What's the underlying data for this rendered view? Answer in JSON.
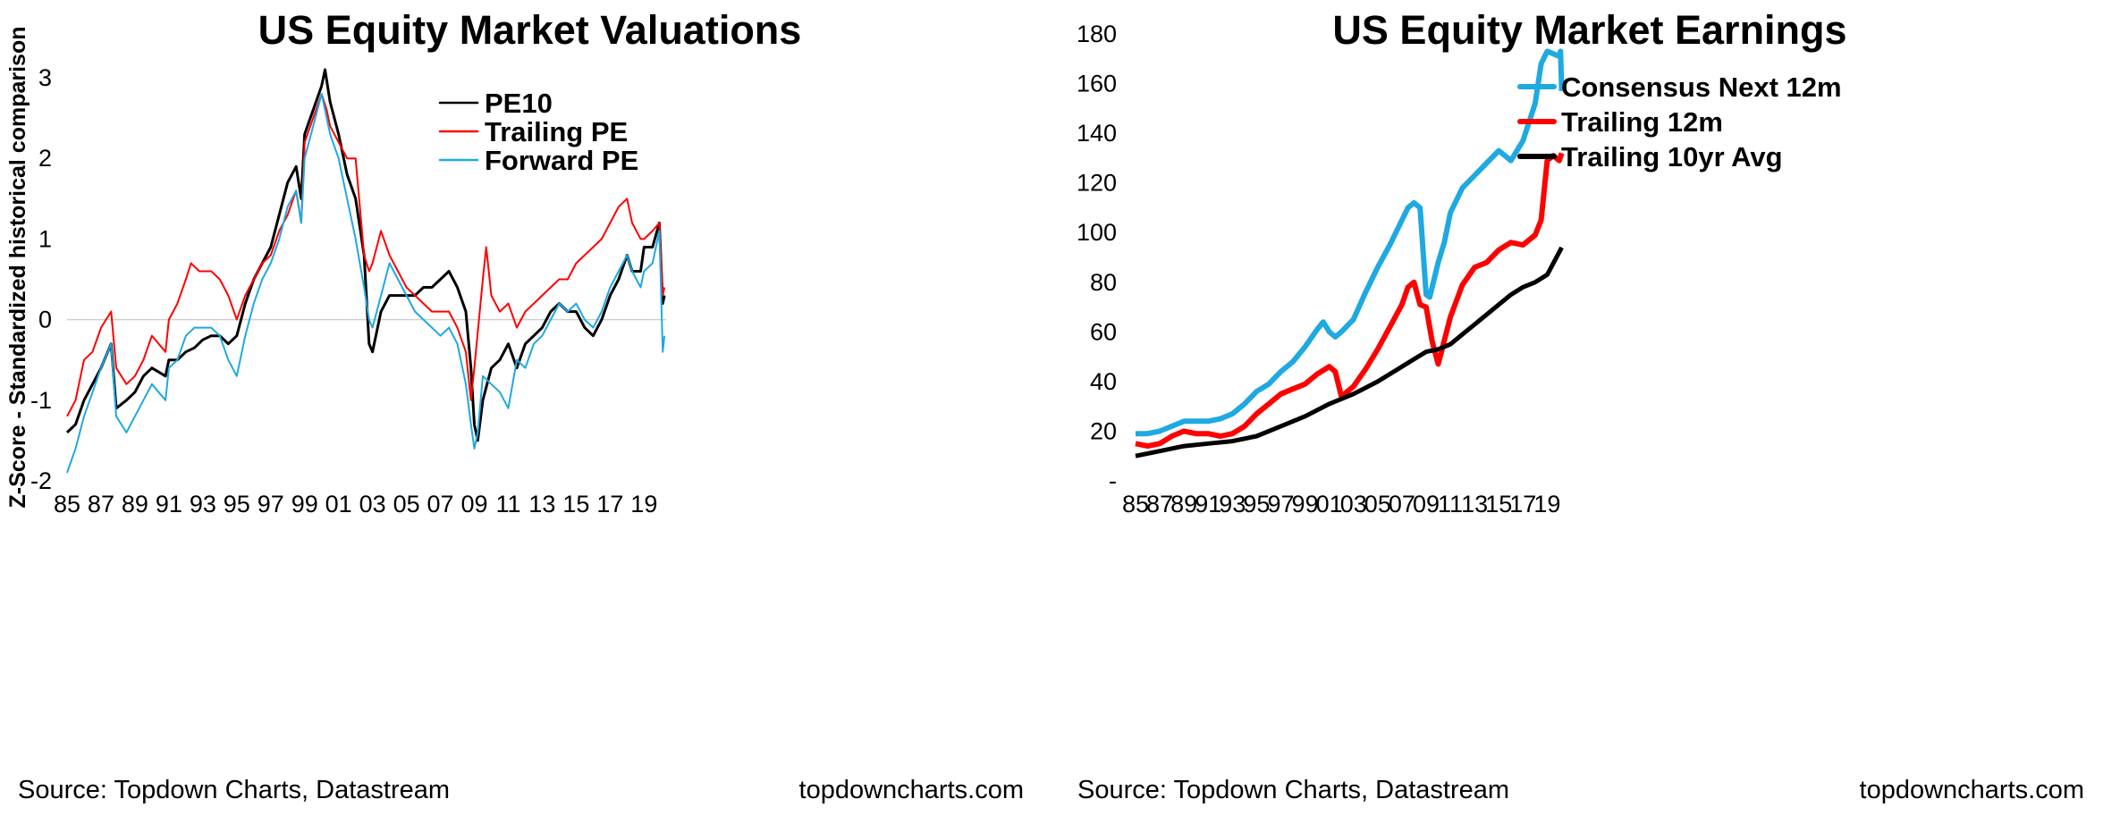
{
  "chart_data": [
    {
      "id": "valuations",
      "type": "line",
      "title": "US Equity Market Valuations",
      "xlabel": "",
      "ylabel": "Z-Score - Standardized historical comparison",
      "xlim": [
        1985,
        2020.3
      ],
      "ylim": [
        -2,
        3.3
      ],
      "yticks": [
        -2,
        -1,
        0,
        1,
        2,
        3
      ],
      "yticklabels": [
        "-2",
        "-1",
        "0",
        "1",
        "2",
        "3"
      ],
      "xticks": [
        1985,
        1987,
        1989,
        1991,
        1993,
        1995,
        1997,
        1999,
        2001,
        2003,
        2005,
        2007,
        2009,
        2011,
        2013,
        2015,
        2017,
        2019
      ],
      "xticklabels": [
        "85",
        "87",
        "89",
        "91",
        "93",
        "95",
        "97",
        "99",
        "01",
        "03",
        "05",
        "07",
        "09",
        "11",
        "13",
        "15",
        "17",
        "19"
      ],
      "zero_line": true,
      "legend_position": "top-right",
      "series": [
        {
          "name": "PE10",
          "color": "#000000",
          "x": [
            1985.0,
            1985.5,
            1986.0,
            1986.5,
            1987.0,
            1987.6,
            1987.9,
            1988.5,
            1989.0,
            1989.5,
            1990.0,
            1990.8,
            1991.0,
            1991.5,
            1992.0,
            1992.5,
            1993.0,
            1993.5,
            1994.0,
            1994.5,
            1995.0,
            1995.5,
            1996.0,
            1996.5,
            1997.0,
            1997.5,
            1998.0,
            1998.5,
            1998.8,
            1999.0,
            1999.5,
            2000.0,
            2000.2,
            2000.5,
            2001.0,
            2001.5,
            2002.0,
            2002.5,
            2002.8,
            2003.0,
            2003.5,
            2004.0,
            2004.5,
            2005.0,
            2005.5,
            2006.0,
            2006.5,
            2007.0,
            2007.5,
            2008.0,
            2008.5,
            2008.8,
            2009.0,
            2009.2,
            2009.5,
            2010.0,
            2010.5,
            2011.0,
            2011.5,
            2012.0,
            2012.5,
            2013.0,
            2013.5,
            2014.0,
            2014.5,
            2015.0,
            2015.5,
            2016.0,
            2016.5,
            2017.0,
            2017.5,
            2018.0,
            2018.3,
            2018.8,
            2019.0,
            2019.5,
            2019.9,
            2020.1,
            2020.2
          ],
          "y": [
            -1.4,
            -1.3,
            -1.0,
            -0.8,
            -0.6,
            -0.3,
            -1.1,
            -1.0,
            -0.9,
            -0.7,
            -0.6,
            -0.7,
            -0.5,
            -0.5,
            -0.4,
            -0.35,
            -0.25,
            -0.2,
            -0.2,
            -0.3,
            -0.2,
            0.2,
            0.5,
            0.7,
            0.9,
            1.3,
            1.7,
            1.9,
            1.5,
            2.3,
            2.6,
            2.9,
            3.1,
            2.7,
            2.3,
            1.8,
            1.5,
            0.8,
            -0.3,
            -0.4,
            0.1,
            0.3,
            0.3,
            0.3,
            0.3,
            0.4,
            0.4,
            0.5,
            0.6,
            0.4,
            0.1,
            -0.6,
            -1.3,
            -1.5,
            -1.0,
            -0.6,
            -0.5,
            -0.3,
            -0.6,
            -0.3,
            -0.2,
            -0.1,
            0.1,
            0.2,
            0.1,
            0.1,
            -0.1,
            -0.2,
            0.0,
            0.3,
            0.5,
            0.8,
            0.6,
            0.6,
            0.9,
            0.9,
            1.2,
            0.2,
            0.3
          ]
        },
        {
          "name": "Trailing PE",
          "color": "#ff0000",
          "x": [
            1985.0,
            1985.5,
            1986.0,
            1986.5,
            1987.0,
            1987.6,
            1987.9,
            1988.5,
            1989.0,
            1989.5,
            1990.0,
            1990.8,
            1991.0,
            1991.5,
            1992.0,
            1992.3,
            1992.8,
            1993.5,
            1994.0,
            1994.5,
            1995.0,
            1995.5,
            1996.0,
            1996.5,
            1997.0,
            1997.5,
            1998.0,
            1998.5,
            1998.8,
            1999.0,
            1999.5,
            2000.0,
            2000.3,
            2000.5,
            2001.0,
            2001.5,
            2002.0,
            2002.5,
            2002.8,
            2003.0,
            2003.5,
            2004.0,
            2004.5,
            2005.0,
            2005.5,
            2006.0,
            2006.5,
            2007.0,
            2007.5,
            2008.0,
            2008.5,
            2008.8,
            2009.0,
            2009.5,
            2009.7,
            2010.0,
            2010.5,
            2011.0,
            2011.5,
            2012.0,
            2012.5,
            2013.0,
            2013.5,
            2014.0,
            2014.5,
            2015.0,
            2015.5,
            2016.0,
            2016.5,
            2017.0,
            2017.5,
            2018.0,
            2018.3,
            2018.8,
            2019.0,
            2019.5,
            2019.9,
            2020.1,
            2020.2
          ],
          "y": [
            -1.2,
            -1.0,
            -0.5,
            -0.4,
            -0.1,
            0.1,
            -0.6,
            -0.8,
            -0.7,
            -0.5,
            -0.2,
            -0.4,
            0.0,
            0.2,
            0.5,
            0.7,
            0.6,
            0.6,
            0.5,
            0.3,
            0.0,
            0.3,
            0.5,
            0.7,
            0.8,
            1.1,
            1.3,
            1.6,
            1.2,
            2.2,
            2.5,
            2.8,
            2.6,
            2.4,
            2.2,
            2.0,
            2.0,
            0.8,
            0.6,
            0.7,
            1.1,
            0.8,
            0.6,
            0.4,
            0.3,
            0.2,
            0.1,
            0.1,
            0.1,
            -0.1,
            -0.4,
            -1.0,
            -0.6,
            0.5,
            0.9,
            0.3,
            0.1,
            0.2,
            -0.1,
            0.1,
            0.2,
            0.3,
            0.4,
            0.5,
            0.5,
            0.7,
            0.8,
            0.9,
            1.0,
            1.2,
            1.4,
            1.5,
            1.2,
            1.0,
            1.0,
            1.1,
            1.2,
            0.3,
            0.4
          ]
        },
        {
          "name": "Forward PE",
          "color": "#1fa9e1",
          "x": [
            1985.0,
            1985.5,
            1986.0,
            1986.5,
            1987.0,
            1987.6,
            1987.9,
            1988.5,
            1989.0,
            1989.5,
            1990.0,
            1990.8,
            1991.0,
            1991.5,
            1992.0,
            1992.5,
            1993.0,
            1993.5,
            1994.0,
            1994.5,
            1995.0,
            1995.5,
            1996.0,
            1996.5,
            1997.0,
            1997.5,
            1998.0,
            1998.5,
            1998.8,
            1999.0,
            1999.5,
            2000.0,
            2000.3,
            2000.5,
            2001.0,
            2001.5,
            2002.0,
            2002.5,
            2002.8,
            2003.0,
            2003.5,
            2004.0,
            2004.5,
            2005.0,
            2005.5,
            2006.0,
            2006.5,
            2007.0,
            2007.5,
            2008.0,
            2008.5,
            2008.8,
            2009.0,
            2009.2,
            2009.5,
            2010.0,
            2010.5,
            2011.0,
            2011.5,
            2012.0,
            2012.5,
            2013.0,
            2013.5,
            2014.0,
            2014.5,
            2015.0,
            2015.5,
            2016.0,
            2016.5,
            2017.0,
            2017.5,
            2018.0,
            2018.3,
            2018.8,
            2019.0,
            2019.5,
            2019.9,
            2020.1,
            2020.2
          ],
          "y": [
            -1.9,
            -1.6,
            -1.2,
            -0.9,
            -0.6,
            -0.3,
            -1.2,
            -1.4,
            -1.2,
            -1.0,
            -0.8,
            -1.0,
            -0.6,
            -0.5,
            -0.2,
            -0.1,
            -0.1,
            -0.1,
            -0.2,
            -0.5,
            -0.7,
            -0.2,
            0.2,
            0.5,
            0.7,
            1.0,
            1.4,
            1.6,
            1.2,
            2.0,
            2.4,
            2.8,
            2.5,
            2.3,
            2.0,
            1.5,
            1.0,
            0.4,
            0.0,
            -0.1,
            0.3,
            0.7,
            0.5,
            0.3,
            0.1,
            0.0,
            -0.1,
            -0.2,
            -0.1,
            -0.3,
            -0.8,
            -1.3,
            -1.6,
            -1.4,
            -0.7,
            -0.8,
            -0.9,
            -1.1,
            -0.5,
            -0.6,
            -0.3,
            -0.2,
            0.0,
            0.2,
            0.1,
            0.2,
            0.0,
            -0.1,
            0.1,
            0.4,
            0.6,
            0.8,
            0.6,
            0.4,
            0.6,
            0.7,
            1.1,
            -0.4,
            -0.2
          ]
        }
      ]
    },
    {
      "id": "earnings",
      "type": "line",
      "title": "US Equity Market Earnings",
      "xlabel": "",
      "ylabel": "",
      "xlim": [
        1985,
        2020.3
      ],
      "ylim": [
        0,
        180
      ],
      "yticks": [
        0,
        20,
        40,
        60,
        80,
        100,
        120,
        140,
        160,
        180
      ],
      "yticklabels": [
        "-",
        "20",
        "40",
        "60",
        "80",
        "100",
        "120",
        "140",
        "160",
        "180"
      ],
      "xticks": [
        1985,
        1987,
        1989,
        1991,
        1993,
        1995,
        1997,
        1999,
        2001,
        2003,
        2005,
        2007,
        2009,
        2011,
        2013,
        2015,
        2017,
        2019
      ],
      "xticklabels": [
        "85",
        "87",
        "89",
        "91",
        "93",
        "95",
        "97",
        "99",
        "01",
        "03",
        "05",
        "07",
        "09",
        "11",
        "13",
        "15",
        "17",
        "19"
      ],
      "legend_position": "top-left",
      "series": [
        {
          "name": "Consensus Next 12m",
          "color": "#1fa9e1",
          "x": [
            1985.0,
            1986.0,
            1987.0,
            1988.0,
            1989.0,
            1990.0,
            1991.0,
            1992.0,
            1993.0,
            1994.0,
            1995.0,
            1996.0,
            1997.0,
            1998.0,
            1999.0,
            2000.0,
            2000.5,
            2001.0,
            2001.5,
            2002.0,
            2003.0,
            2004.0,
            2005.0,
            2006.0,
            2007.0,
            2007.5,
            2008.0,
            2008.5,
            2009.0,
            2009.3,
            2010.0,
            2010.5,
            2011.0,
            2012.0,
            2013.0,
            2014.0,
            2015.0,
            2016.0,
            2017.0,
            2018.0,
            2018.5,
            2019.0,
            2019.5,
            2020.0,
            2020.1,
            2020.2
          ],
          "y": [
            19,
            19,
            20,
            22,
            24,
            24,
            24,
            25,
            27,
            31,
            36,
            39,
            44,
            48,
            54,
            61,
            64,
            60,
            58,
            60,
            65,
            76,
            86,
            95,
            105,
            110,
            112,
            110,
            75,
            74,
            88,
            96,
            108,
            118,
            123,
            128,
            133,
            129,
            137,
            152,
            168,
            173,
            172,
            171,
            173,
            157
          ]
        },
        {
          "name": "Trailing 12m",
          "color": "#ff0000",
          "x": [
            1985.0,
            1986.0,
            1987.0,
            1988.0,
            1989.0,
            1990.0,
            1991.0,
            1992.0,
            1993.0,
            1994.0,
            1995.0,
            1996.0,
            1997.0,
            1998.0,
            1999.0,
            2000.0,
            2001.0,
            2001.5,
            2002.0,
            2003.0,
            2004.0,
            2005.0,
            2006.0,
            2007.0,
            2007.5,
            2008.0,
            2008.5,
            2009.0,
            2009.5,
            2010.0,
            2011.0,
            2012.0,
            2013.0,
            2014.0,
            2015.0,
            2016.0,
            2017.0,
            2018.0,
            2018.5,
            2019.0,
            2019.5,
            2020.0,
            2020.2
          ],
          "y": [
            15,
            14,
            15,
            18,
            20,
            19,
            19,
            18,
            19,
            22,
            27,
            31,
            35,
            37,
            39,
            43,
            46,
            44,
            34,
            38,
            45,
            53,
            62,
            71,
            78,
            80,
            71,
            70,
            56,
            47,
            66,
            79,
            86,
            88,
            93,
            96,
            95,
            99,
            105,
            129,
            131,
            129,
            132
          ]
        },
        {
          "name": "Trailing 10yr Avg",
          "color": "#000000",
          "x": [
            1985.0,
            1987.0,
            1989.0,
            1991.0,
            1993.0,
            1995.0,
            1997.0,
            1999.0,
            2001.0,
            2003.0,
            2005.0,
            2007.0,
            2008.0,
            2009.0,
            2010.0,
            2011.0,
            2012.0,
            2013.0,
            2014.0,
            2015.0,
            2016.0,
            2017.0,
            2018.0,
            2019.0,
            2020.2
          ],
          "y": [
            10,
            12,
            14,
            15,
            16,
            18,
            22,
            26,
            31,
            35,
            40,
            46,
            49,
            52,
            53,
            55,
            59,
            63,
            67,
            71,
            75,
            78,
            80,
            83,
            94
          ]
        }
      ]
    }
  ],
  "footer": {
    "left_source": "Source: Topdown Charts, Datastream",
    "left_credit": "topdowncharts.com",
    "right_source": "Source: Topdown Charts, Datastream",
    "right_credit": "topdowncharts.com"
  }
}
